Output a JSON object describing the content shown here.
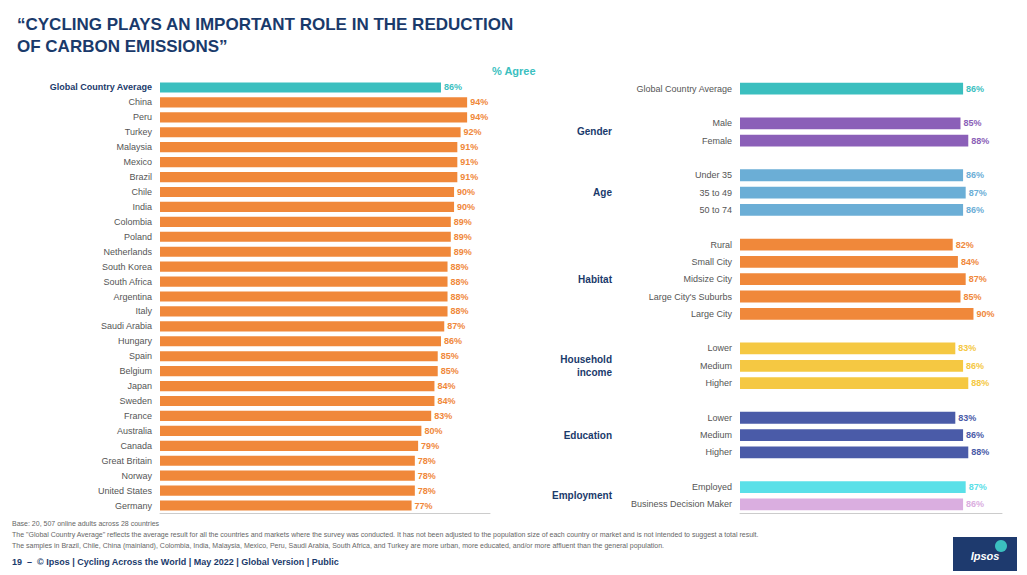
{
  "chart_data": [
    {
      "type": "bar",
      "orientation": "horizontal",
      "title": "“CYCLING PLAYS AN IMPORTANT ROLE IN THE REDUCTION\nOF CARBON EMISSIONS”",
      "annotations": [
        "% Agree",
        "Base: 20, 507 online adults across 28 countries\nThe \"Global Country Average\" reflects the average result for all the countries and markets where the survey was conducted. It has not been adjusted to the population size of each country or market and is not intended to suggest a total result.\nThe samples in Brazil, Chile, China (mainland), Colombia, India, Malaysia, Mexico, Peru, Saudi Arabia, South Africa, and Turkey are more urban, more educated, and/or more affluent than the general population.",
        "19  –  © Ipsos | Cycling Across the World | May 2022 | Global Version | Public",
        "Ipsos"
      ],
      "categories": [
        "Global Country Average",
        "China",
        "Peru",
        "Turkey",
        "Malaysia",
        "Mexico",
        "Brazil",
        "Chile",
        "India",
        "Colombia",
        "Poland",
        "Netherlands",
        "South Korea",
        "South Africa",
        "Argentina",
        "Italy",
        "Saudi Arabia",
        "Hungary",
        "Spain",
        "Belgium",
        "Japan",
        "Sweden",
        "France",
        "Australia",
        "Canada",
        "Great Britain",
        "Norway",
        "United States",
        "Germany"
      ],
      "values": [
        86,
        94,
        94,
        92,
        91,
        91,
        91,
        90,
        90,
        89,
        89,
        89,
        88,
        88,
        88,
        88,
        87,
        86,
        85,
        85,
        84,
        84,
        83,
        80,
        79,
        78,
        78,
        78,
        77
      ],
      "value_labels": [
        "86%",
        "94%",
        "94%",
        "92%",
        "91%",
        "91%",
        "91%",
        "90%",
        "90%",
        "89%",
        "89%",
        "89%",
        "88%",
        "88%",
        "88%",
        "88%",
        "87%",
        "86%",
        "85%",
        "85%",
        "84%",
        "84%",
        "83%",
        "80%",
        "79%",
        "78%",
        "78%",
        "78%",
        "77%"
      ],
      "colors": [
        "#3bbfbf",
        "#f0883a",
        "#f0883a",
        "#f0883a",
        "#f0883a",
        "#f0883a",
        "#f0883a",
        "#f0883a",
        "#f0883a",
        "#f0883a",
        "#f0883a",
        "#f0883a",
        "#f0883a",
        "#f0883a",
        "#f0883a",
        "#f0883a",
        "#f0883a",
        "#f0883a",
        "#f0883a",
        "#f0883a",
        "#f0883a",
        "#f0883a",
        "#f0883a",
        "#f0883a",
        "#f0883a",
        "#f0883a",
        "#f0883a",
        "#f0883a",
        "#f0883a"
      ],
      "xlim": [
        0,
        101
      ],
      "data_labels": true,
      "tick_labels": "y",
      "grid": false
    },
    {
      "type": "bar",
      "orientation": "horizontal",
      "categories": [
        "Global Country Average",
        "Male",
        "Female",
        "Under 35",
        "35 to 49",
        "50 to 74",
        "Rural",
        "Small City",
        "Midsize City",
        "Large City's Suburbs",
        "Large City",
        "Lower",
        "Medium",
        "Higher",
        "Lower",
        "Medium",
        "Higher",
        "Employed",
        "Business Decision Maker"
      ],
      "groups": [
        null,
        "Gender",
        "Gender",
        "Age",
        "Age",
        "Age",
        "Habitat",
        "Habitat",
        "Habitat",
        "Habitat",
        "Habitat",
        "Household\nincome",
        "Household\nincome",
        "Household\nincome",
        "Education",
        "Education",
        "Education",
        "Employment",
        "Employment"
      ],
      "values": [
        86,
        85,
        88,
        86,
        87,
        86,
        82,
        84,
        87,
        85,
        90,
        83,
        86,
        88,
        83,
        86,
        88,
        87,
        86
      ],
      "value_labels": [
        "86%",
        "85%",
        "88%",
        "86%",
        "87%",
        "86%",
        "82%",
        "84%",
        "87%",
        "85%",
        "90%",
        "83%",
        "86%",
        "88%",
        "83%",
        "86%",
        "88%",
        "87%",
        "86%"
      ],
      "colors": [
        "#3bbfbf",
        "#8b5fb8",
        "#8b5fb8",
        "#6baed6",
        "#6baed6",
        "#6baed6",
        "#f0883a",
        "#f0883a",
        "#f0883a",
        "#f0883a",
        "#f0883a",
        "#f5c842",
        "#f5c842",
        "#f5c842",
        "#4a5ba8",
        "#4a5ba8",
        "#4a5ba8",
        "#5ae0e8",
        "#daaee0"
      ],
      "xlim": [
        0,
        101
      ],
      "data_labels": true,
      "tick_labels": "y",
      "grid": false
    }
  ]
}
